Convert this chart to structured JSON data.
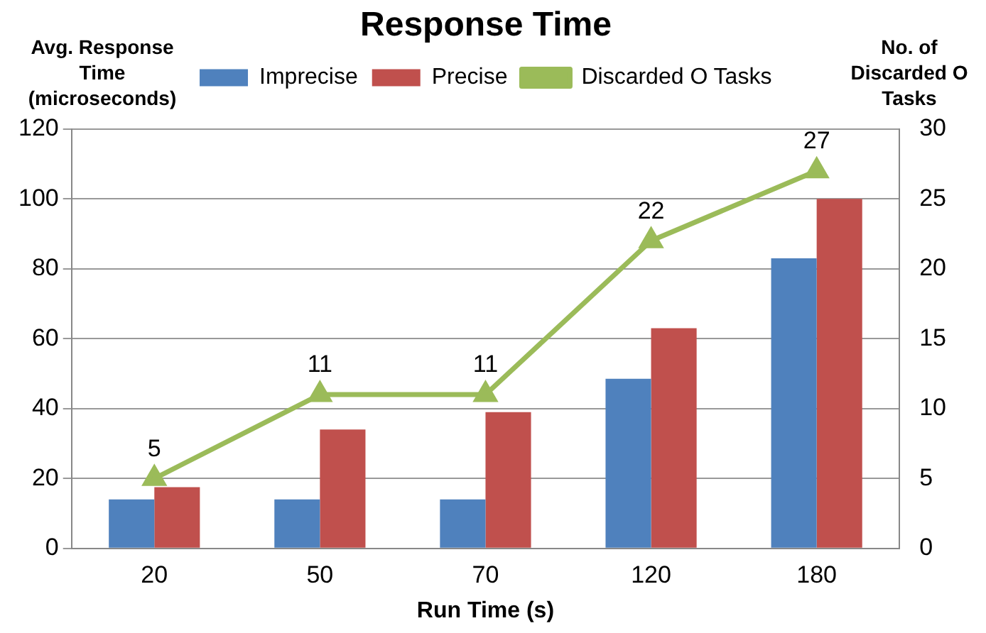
{
  "chart_data": {
    "type": "bar",
    "title": "Response Time",
    "xlabel": "Run Time (s)",
    "ylabel": "Avg. Response Time (microseconds)",
    "y2label": "No. of Discarded O Tasks",
    "categories": [
      "20",
      "50",
      "70",
      "120",
      "180"
    ],
    "series": [
      {
        "name": "Imprecise",
        "color": "#4f81bd",
        "values": [
          14,
          14,
          14,
          48.5,
          83
        ]
      },
      {
        "name": "Precise",
        "color": "#c0504d",
        "values": [
          17.5,
          34,
          39,
          63,
          100
        ]
      },
      {
        "name": "Discarded O Tasks",
        "type": "line",
        "axis": "y2",
        "color": "#9bbb59",
        "values": [
          5,
          11,
          11,
          22,
          27
        ],
        "value_labels": [
          "5",
          "11",
          "11",
          "22",
          "27"
        ]
      }
    ],
    "ylim": [
      0,
      120
    ],
    "yticks": [
      0,
      20,
      40,
      60,
      80,
      100,
      120
    ],
    "y2lim": [
      0,
      30
    ],
    "y2ticks": [
      0,
      5,
      10,
      15,
      20,
      25,
      30
    ],
    "grid": "y",
    "legend": "top",
    "marker": "triangle",
    "line_style": "solid"
  }
}
